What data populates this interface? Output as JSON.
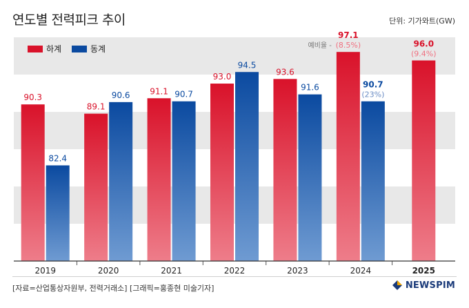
{
  "title": "연도별 전력피크 추이",
  "unit": "단위: 기가와트(GW)",
  "source": "[자료=산업통상자원부, 전력거래소] [그래픽=홍종현 미술기자]",
  "brand": "NEWSPIM",
  "colors": {
    "limit": "#d9122a",
    "summer": "#0b4aa0",
    "band": "#e8e8e8",
    "ratio_label": "#f07080",
    "summer_ratio_label": "#6a8cc4"
  },
  "chart_data": {
    "type": "bar",
    "categories": [
      "2019",
      "2020",
      "2021",
      "2022",
      "2023",
      "2024",
      "2025"
    ],
    "series": [
      {
        "name": "하계",
        "values": [
          90.3,
          89.1,
          91.1,
          93.0,
          93.6,
          97.1,
          96.0
        ]
      },
      {
        "name": "동계",
        "values": [
          82.4,
          90.6,
          90.7,
          94.5,
          91.6,
          90.7,
          null
        ]
      }
    ],
    "value_labels": {
      "limit": [
        "90.3",
        "89.1",
        "91.1",
        "93.0",
        "93.6",
        "97.1",
        "96.0"
      ],
      "summer": [
        "82.4",
        "90.6",
        "90.7",
        "94.5",
        "91.6",
        "90.7",
        ""
      ]
    },
    "sub_labels": {
      "limit": [
        "",
        "",
        "",
        "",
        "",
        "(8.5%)",
        "(9.4%)"
      ],
      "summer": [
        "",
        "",
        "",
        "",
        "",
        "(23%)",
        ""
      ]
    },
    "annotation": "예비율 -",
    "bold_categories": [
      "2024",
      "2025"
    ],
    "ylim": [
      70,
      99
    ],
    "legend": "top-left",
    "grid": false
  }
}
